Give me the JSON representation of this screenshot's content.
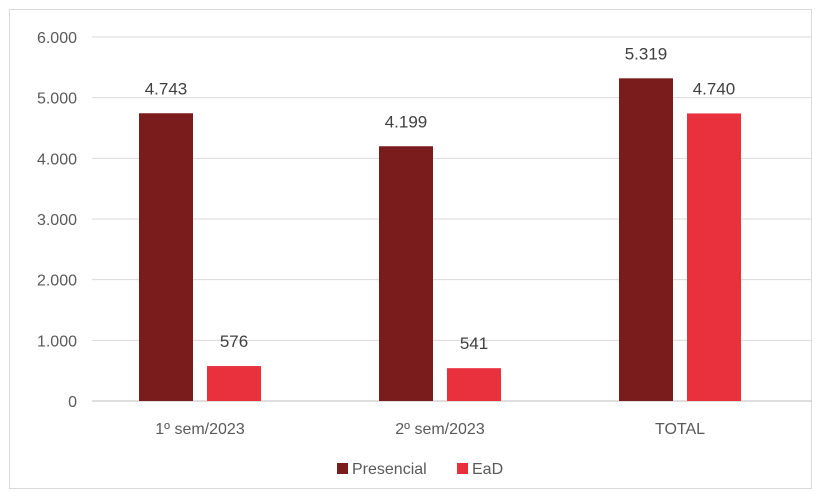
{
  "chart_data": {
    "type": "bar",
    "categories": [
      "1º sem/2023",
      "2º sem/2023",
      "TOTAL"
    ],
    "series": [
      {
        "name": "Presencial",
        "color": "#7b1c1c",
        "values": [
          4743,
          4199,
          5319
        ],
        "labels": [
          "4.743",
          "4.199",
          "5.319"
        ]
      },
      {
        "name": "EaD",
        "color": "#e8313d",
        "values": [
          576,
          541,
          4740
        ],
        "labels": [
          "576",
          "541",
          "4.740"
        ]
      }
    ],
    "ylim": [
      0,
      6000
    ],
    "yticks": [
      0,
      1000,
      2000,
      3000,
      4000,
      5000,
      6000
    ],
    "ytick_labels": [
      "0",
      "1.000",
      "2.000",
      "3.000",
      "4.000",
      "5.000",
      "6.000"
    ],
    "grid": true,
    "legend_position": "bottom"
  }
}
